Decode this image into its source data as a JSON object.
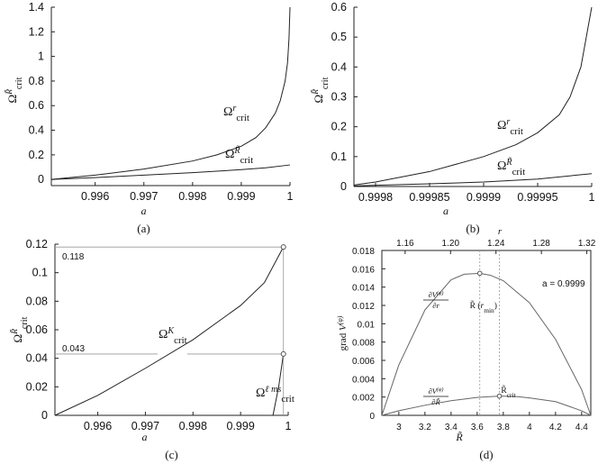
{
  "chart_data": [
    {
      "panel": "a",
      "caption": "(a)",
      "type": "line",
      "xlabel": "a",
      "ylabel": "Ω crit R̃",
      "xlim": [
        0.9951,
        1.0
      ],
      "ylim": [
        -0.05,
        1.4
      ],
      "xticks": [
        0.996,
        0.997,
        0.998,
        0.999,
        1
      ],
      "xtick_labels": [
        "0.996",
        "0.997",
        "0.998",
        "0.999",
        "1"
      ],
      "yticks": [
        0,
        0.2,
        0.4,
        0.6,
        0.8,
        1,
        1.2,
        1.4
      ],
      "ytick_labels": [
        "0",
        "0.2",
        "0.4",
        "0.6",
        "0.8",
        "1",
        "1.2",
        "1.4"
      ],
      "series": [
        {
          "name": "Ω crit r",
          "x": [
            0.9951,
            0.996,
            0.997,
            0.998,
            0.9985,
            0.999,
            0.9993,
            0.9995,
            0.9997,
            0.9998,
            0.99985,
            0.9999,
            0.99995,
            0.99998,
            1.0
          ],
          "y": [
            0.0,
            0.035,
            0.085,
            0.15,
            0.2,
            0.27,
            0.34,
            0.42,
            0.54,
            0.64,
            0.72,
            0.8,
            0.95,
            1.15,
            1.4
          ]
        },
        {
          "name": "Ω crit R̃",
          "x": [
            0.9951,
            0.996,
            0.997,
            0.998,
            0.999,
            0.9995,
            1.0
          ],
          "y": [
            0.0,
            0.015,
            0.035,
            0.055,
            0.08,
            0.095,
            0.118
          ]
        }
      ]
    },
    {
      "panel": "b",
      "caption": "(b)",
      "type": "line",
      "xlabel": "a",
      "ylabel": "Ω crit R̃",
      "xlim": [
        0.99978,
        1.0
      ],
      "ylim": [
        0,
        0.6
      ],
      "xticks": [
        0.9998,
        0.99985,
        0.9999,
        0.99995,
        1
      ],
      "xtick_labels": [
        "0.9998",
        "0.99985",
        "0.9999",
        "0.99995",
        "1"
      ],
      "yticks": [
        0,
        0.1,
        0.2,
        0.3,
        0.4,
        0.5,
        0.6
      ],
      "ytick_labels": [
        "0",
        "0.1",
        "0.2",
        "0.3",
        "0.4",
        "0.5",
        "0.6"
      ],
      "series": [
        {
          "name": "Ω crit r",
          "x": [
            0.99978,
            0.9998,
            0.99985,
            0.9999,
            0.99993,
            0.99995,
            0.99997,
            0.99998,
            0.99999,
            1.0
          ],
          "y": [
            0.005,
            0.015,
            0.05,
            0.1,
            0.14,
            0.18,
            0.24,
            0.3,
            0.4,
            0.6
          ]
        },
        {
          "name": "Ω crit R̃",
          "x": [
            0.99978,
            0.9998,
            0.99985,
            0.9999,
            0.99995,
            1.0
          ],
          "y": [
            0.002,
            0.004,
            0.009,
            0.015,
            0.025,
            0.043
          ]
        }
      ]
    },
    {
      "panel": "c",
      "caption": "(c)",
      "type": "line",
      "xlabel": "a",
      "ylabel": "Ω crit R̃",
      "xlim": [
        0.9951,
        1.0
      ],
      "ylim": [
        0,
        0.12
      ],
      "xticks": [
        0.996,
        0.997,
        0.998,
        0.999,
        1
      ],
      "xtick_labels": [
        "0.996",
        "0.997",
        "0.998",
        "0.999",
        "1"
      ],
      "yticks": [
        0,
        0.02,
        0.04,
        0.06,
        0.08,
        0.1,
        0.12
      ],
      "ytick_labels": [
        "0",
        "0.02",
        "0.04",
        "0.06",
        "0.08",
        "0.1",
        "0.12"
      ],
      "annotations": [
        {
          "text": "0.118",
          "value": 0.118,
          "a": 0.9999
        },
        {
          "text": "0.043",
          "value": 0.043,
          "a": 0.9999
        }
      ],
      "series": [
        {
          "name": "Ω crit K",
          "x": [
            0.9951,
            0.996,
            0.997,
            0.998,
            0.999,
            0.9995,
            0.9999
          ],
          "y": [
            0.0,
            0.014,
            0.033,
            0.053,
            0.077,
            0.093,
            0.118
          ]
        },
        {
          "name": "Ω crit ℓ ms",
          "x": [
            0.99968,
            0.9998,
            0.9999
          ],
          "y": [
            0.0,
            0.02,
            0.043
          ]
        }
      ]
    },
    {
      "panel": "d",
      "caption": "(d)",
      "type": "line",
      "xlabel": "R̃",
      "x2label": "r",
      "ylabel": "grad V(φ)",
      "legend_note": "a = 0.9999",
      "xlim": [
        2.87,
        4.47
      ],
      "ylim": [
        0,
        0.018
      ],
      "xticks": [
        3,
        3.2,
        3.4,
        3.6,
        3.8,
        4,
        4.2,
        4.4
      ],
      "xtick_labels": [
        "3",
        "3.2",
        "3.4",
        "3.6",
        "3.8",
        "4",
        "4.2",
        "4.4"
      ],
      "x2ticks": [
        1.16,
        1.2,
        1.24,
        1.28,
        1.32
      ],
      "x2tick_labels": [
        "1.16",
        "1.20",
        "1.24",
        "1.28",
        "1.32"
      ],
      "yticks": [
        0,
        0.002,
        0.004,
        0.006,
        0.008,
        0.01,
        0.012,
        0.014,
        0.016,
        0.018
      ],
      "ytick_labels": [
        "0",
        "0.002",
        "0.004",
        "0.006",
        "0.008",
        "0.01",
        "0.012",
        "0.014",
        "0.016",
        "0.018"
      ],
      "annotations": [
        {
          "text": "R̃ (r min)",
          "x": 3.62,
          "y": 0.0155
        },
        {
          "text": "R̃ crit",
          "x": 3.77,
          "y": 0.0021
        }
      ],
      "series": [
        {
          "name": "∂V(φ) / ∂r",
          "x": [
            2.87,
            3.0,
            3.2,
            3.4,
            3.5,
            3.62,
            3.7,
            3.8,
            4.0,
            4.2,
            4.4,
            4.47
          ],
          "y": [
            0.0,
            0.0055,
            0.0115,
            0.0148,
            0.0154,
            0.0155,
            0.0153,
            0.0147,
            0.0123,
            0.0083,
            0.0028,
            0.0
          ]
        },
        {
          "name": "∂V(φ) / ∂R̃",
          "x": [
            2.87,
            3.0,
            3.2,
            3.4,
            3.6,
            3.77,
            3.9,
            4.0,
            4.2,
            4.4,
            4.47
          ],
          "y": [
            0.0,
            0.0005,
            0.0011,
            0.0016,
            0.00195,
            0.0021,
            0.00205,
            0.0019,
            0.0015,
            0.0005,
            0.0
          ]
        }
      ]
    }
  ]
}
